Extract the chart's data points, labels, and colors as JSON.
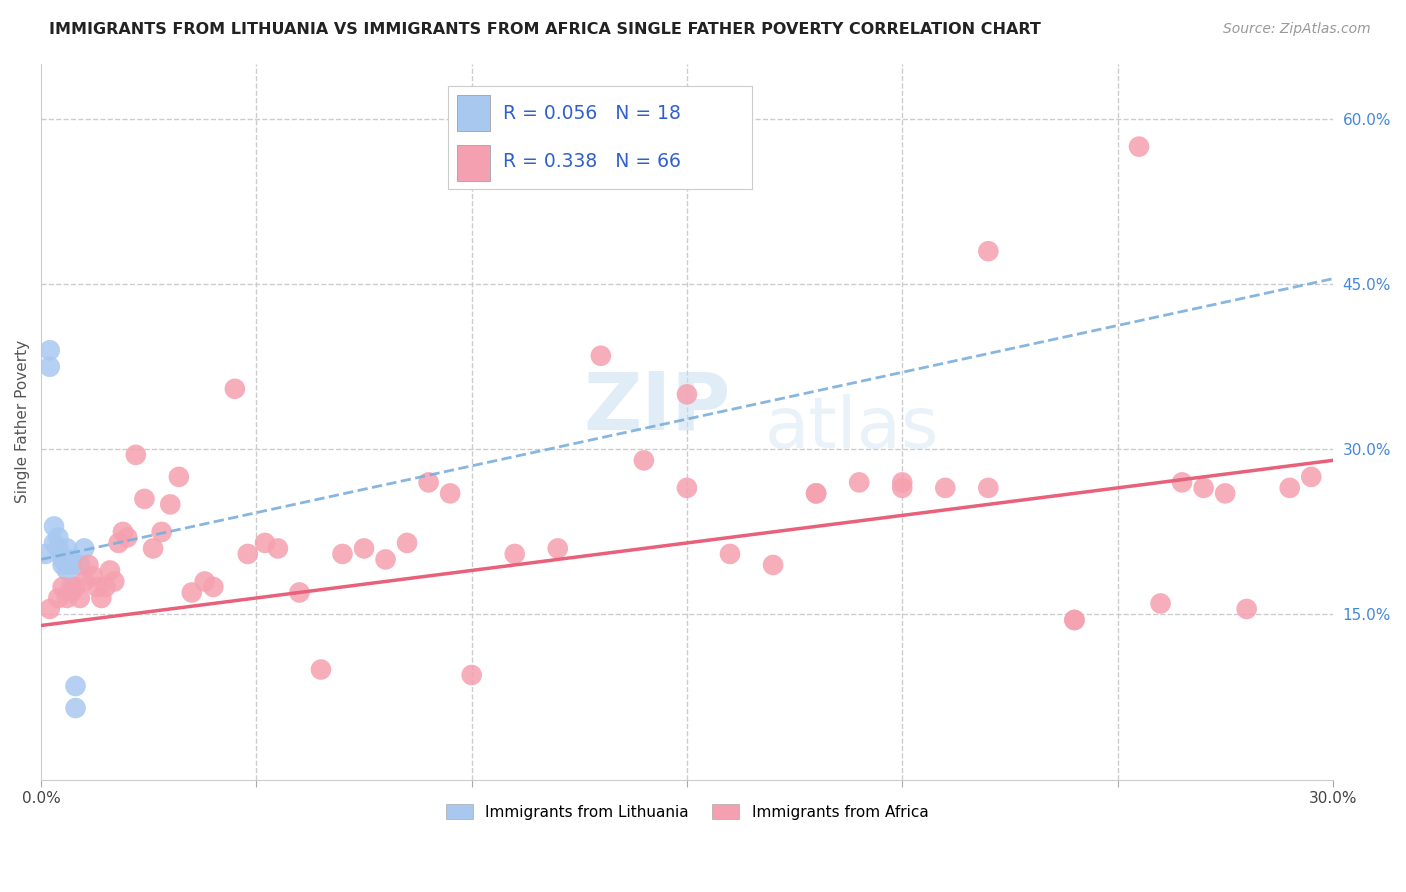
{
  "title": "IMMIGRANTS FROM LITHUANIA VS IMMIGRANTS FROM AFRICA SINGLE FATHER POVERTY CORRELATION CHART",
  "source": "Source: ZipAtlas.com",
  "ylabel": "Single Father Poverty",
  "xlim": [
    0.0,
    0.3
  ],
  "ylim": [
    0.0,
    0.65
  ],
  "blue_color": "#a8c8f0",
  "pink_color": "#f5a0b0",
  "blue_line_color": "#7aaedc",
  "pink_line_color": "#e8607a",
  "legend_text_color": "#3060d0",
  "watermark_zip": "ZIP",
  "watermark_atlas": "atlas",
  "blue_points_x": [
    0.001,
    0.002,
    0.002,
    0.003,
    0.003,
    0.004,
    0.004,
    0.005,
    0.005,
    0.006,
    0.006,
    0.007,
    0.007,
    0.007,
    0.008,
    0.008,
    0.009,
    0.01
  ],
  "blue_points_y": [
    0.205,
    0.39,
    0.375,
    0.23,
    0.215,
    0.22,
    0.21,
    0.2,
    0.195,
    0.21,
    0.19,
    0.195,
    0.175,
    0.2,
    0.085,
    0.065,
    0.195,
    0.21
  ],
  "pink_points_x": [
    0.002,
    0.004,
    0.005,
    0.006,
    0.007,
    0.008,
    0.009,
    0.01,
    0.011,
    0.012,
    0.013,
    0.014,
    0.015,
    0.016,
    0.017,
    0.018,
    0.019,
    0.02,
    0.022,
    0.024,
    0.026,
    0.028,
    0.03,
    0.032,
    0.035,
    0.038,
    0.04,
    0.045,
    0.048,
    0.052,
    0.055,
    0.06,
    0.065,
    0.07,
    0.075,
    0.08,
    0.085,
    0.09,
    0.095,
    0.1,
    0.11,
    0.12,
    0.13,
    0.14,
    0.15,
    0.16,
    0.17,
    0.18,
    0.19,
    0.2,
    0.21,
    0.22,
    0.24,
    0.255,
    0.26,
    0.265,
    0.27,
    0.275,
    0.28,
    0.29,
    0.295,
    0.15,
    0.18,
    0.2,
    0.22,
    0.24
  ],
  "pink_points_y": [
    0.155,
    0.165,
    0.175,
    0.165,
    0.17,
    0.175,
    0.165,
    0.18,
    0.195,
    0.185,
    0.175,
    0.165,
    0.175,
    0.19,
    0.18,
    0.215,
    0.225,
    0.22,
    0.295,
    0.255,
    0.21,
    0.225,
    0.25,
    0.275,
    0.17,
    0.18,
    0.175,
    0.355,
    0.205,
    0.215,
    0.21,
    0.17,
    0.1,
    0.205,
    0.21,
    0.2,
    0.215,
    0.27,
    0.26,
    0.095,
    0.205,
    0.21,
    0.385,
    0.29,
    0.35,
    0.205,
    0.195,
    0.26,
    0.27,
    0.265,
    0.265,
    0.48,
    0.145,
    0.575,
    0.16,
    0.27,
    0.265,
    0.26,
    0.155,
    0.265,
    0.275,
    0.265,
    0.26,
    0.27,
    0.265,
    0.145
  ],
  "blue_line_x0": 0.0,
  "blue_line_y0": 0.2,
  "blue_line_x1": 0.3,
  "blue_line_y1": 0.455,
  "pink_line_x0": 0.0,
  "pink_line_y0": 0.14,
  "pink_line_x1": 0.3,
  "pink_line_y1": 0.29
}
